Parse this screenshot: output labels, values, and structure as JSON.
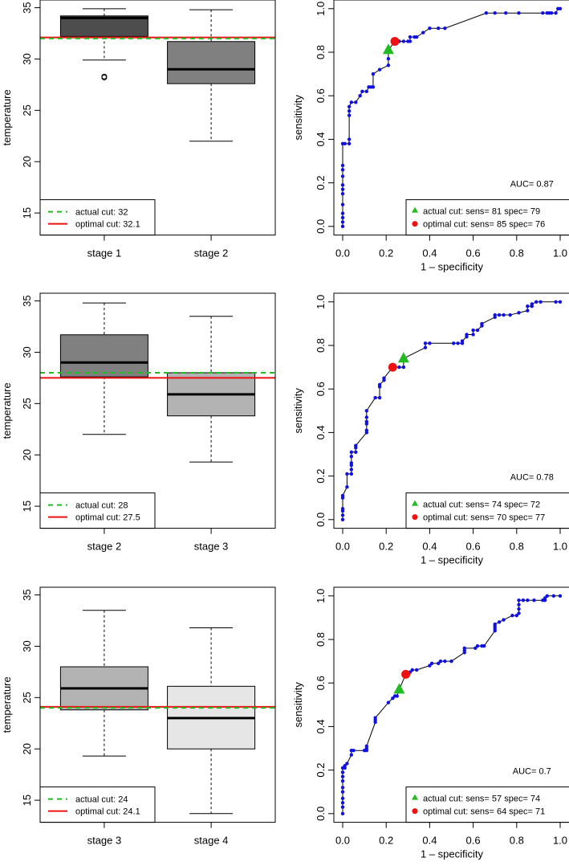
{
  "chart_data": [
    {
      "type": "box",
      "ylabel": "temperature",
      "ylim": [
        12.85,
        35.75
      ],
      "yticks": [
        "15",
        "20",
        "25",
        "30",
        "35"
      ],
      "categories": [
        "stage 1",
        "stage 2"
      ],
      "boxes": [
        {
          "name": "stage 1",
          "whisker_low": 29.9,
          "q1": 32.2,
          "median": 34.0,
          "q3": 34.2,
          "whisker_high": 34.9,
          "outliers": [
            28.3,
            28.2
          ],
          "color": "#4d4d4d"
        },
        {
          "name": "stage 2",
          "whisker_low": 22.0,
          "q1": 27.6,
          "median": 29.0,
          "q3": 31.7,
          "whisker_high": 34.8,
          "outliers": [],
          "color": "#808080"
        }
      ],
      "actual_cut": 32,
      "optimal_cut": 32.1,
      "legend": [
        "actual cut: 32",
        "optimal cut: 32.1"
      ],
      "legend_position": "bottom-left"
    },
    {
      "type": "line",
      "xlabel": "1 – specificity",
      "ylabel": "sensitivity",
      "xlim": [
        0,
        1
      ],
      "ylim": [
        0,
        1
      ],
      "xticks": [
        "0.0",
        "0.2",
        "0.4",
        "0.6",
        "0.8",
        "1.0"
      ],
      "yticks": [
        "0.0",
        "0.2",
        "0.4",
        "0.6",
        "0.8",
        "1.0"
      ],
      "auc_label": "AUC= 0.87",
      "actual": [
        0.21,
        0.81
      ],
      "optimal": [
        0.24,
        0.85
      ],
      "legend": [
        "actual cut: sens= 81 spec= 79",
        "optimal cut: sens= 85 spec= 76"
      ],
      "legend_position": "bottom-right",
      "points": [
        [
          0,
          0
        ],
        [
          0,
          0.02
        ],
        [
          0,
          0.04
        ],
        [
          0,
          0.06
        ],
        [
          0,
          0.1
        ],
        [
          0,
          0.15
        ],
        [
          0,
          0.17
        ],
        [
          0,
          0.19
        ],
        [
          0,
          0.23
        ],
        [
          0,
          0.26
        ],
        [
          0,
          0.28
        ],
        [
          0,
          0.38
        ],
        [
          0.01,
          0.38
        ],
        [
          0.03,
          0.38
        ],
        [
          0.03,
          0.4
        ],
        [
          0.03,
          0.51
        ],
        [
          0.03,
          0.53
        ],
        [
          0.03,
          0.55
        ],
        [
          0.04,
          0.57
        ],
        [
          0.06,
          0.57
        ],
        [
          0.08,
          0.6
        ],
        [
          0.09,
          0.62
        ],
        [
          0.11,
          0.62
        ],
        [
          0.12,
          0.64
        ],
        [
          0.13,
          0.64
        ],
        [
          0.14,
          0.64
        ],
        [
          0.14,
          0.7
        ],
        [
          0.17,
          0.72
        ],
        [
          0.21,
          0.74
        ],
        [
          0.21,
          0.77
        ],
        [
          0.21,
          0.81
        ],
        [
          0.24,
          0.85
        ],
        [
          0.26,
          0.85
        ],
        [
          0.28,
          0.85
        ],
        [
          0.3,
          0.85
        ],
        [
          0.31,
          0.85
        ],
        [
          0.31,
          0.87
        ],
        [
          0.33,
          0.87
        ],
        [
          0.34,
          0.87
        ],
        [
          0.37,
          0.89
        ],
        [
          0.4,
          0.91
        ],
        [
          0.44,
          0.91
        ],
        [
          0.47,
          0.91
        ],
        [
          0.66,
          0.98
        ],
        [
          0.7,
          0.98
        ],
        [
          0.75,
          0.98
        ],
        [
          0.81,
          0.98
        ],
        [
          0.92,
          0.98
        ],
        [
          0.94,
          0.98
        ],
        [
          0.95,
          0.98
        ],
        [
          0.96,
          0.98
        ],
        [
          0.98,
          0.98
        ],
        [
          0.99,
          1
        ],
        [
          1,
          1
        ]
      ]
    },
    {
      "type": "box",
      "ylabel": "temperature",
      "ylim": [
        12.85,
        35.75
      ],
      "yticks": [
        "15",
        "20",
        "25",
        "30",
        "35"
      ],
      "categories": [
        "stage 2",
        "stage 3"
      ],
      "boxes": [
        {
          "name": "stage 2",
          "whisker_low": 22.0,
          "q1": 27.6,
          "median": 29.0,
          "q3": 31.7,
          "whisker_high": 34.8,
          "outliers": [],
          "color": "#808080"
        },
        {
          "name": "stage 3",
          "whisker_low": 19.3,
          "q1": 23.8,
          "median": 25.9,
          "q3": 28.0,
          "whisker_high": 33.5,
          "outliers": [],
          "color": "#b3b3b3"
        }
      ],
      "actual_cut": 28,
      "optimal_cut": 27.5,
      "legend": [
        "actual cut: 28",
        "optimal cut: 27.5"
      ],
      "legend_position": "bottom-left"
    },
    {
      "type": "line",
      "xlabel": "1 – specificity",
      "ylabel": "sensitivity",
      "xlim": [
        0,
        1
      ],
      "ylim": [
        0,
        1
      ],
      "xticks": [
        "0.0",
        "0.2",
        "0.4",
        "0.6",
        "0.8",
        "1.0"
      ],
      "yticks": [
        "0.0",
        "0.2",
        "0.4",
        "0.6",
        "0.8",
        "1.0"
      ],
      "auc_label": "AUC= 0.78",
      "actual": [
        0.28,
        0.74
      ],
      "optimal": [
        0.23,
        0.7
      ],
      "legend": [
        "actual cut: sens= 74 spec= 72",
        "optimal cut: sens= 70 spec= 77"
      ],
      "legend_position": "bottom-right",
      "points": [
        [
          0,
          0
        ],
        [
          0,
          0.02
        ],
        [
          0,
          0.04
        ],
        [
          0,
          0.05
        ],
        [
          0,
          0.1
        ],
        [
          0,
          0.11
        ],
        [
          0.02,
          0.15
        ],
        [
          0.02,
          0.21
        ],
        [
          0.04,
          0.21
        ],
        [
          0.04,
          0.23
        ],
        [
          0.04,
          0.25
        ],
        [
          0.04,
          0.26
        ],
        [
          0.04,
          0.29
        ],
        [
          0.04,
          0.31
        ],
        [
          0.06,
          0.31
        ],
        [
          0.06,
          0.33
        ],
        [
          0.06,
          0.34
        ],
        [
          0.11,
          0.4
        ],
        [
          0.11,
          0.41
        ],
        [
          0.11,
          0.44
        ],
        [
          0.11,
          0.45
        ],
        [
          0.11,
          0.47
        ],
        [
          0.11,
          0.5
        ],
        [
          0.15,
          0.56
        ],
        [
          0.17,
          0.56
        ],
        [
          0.17,
          0.61
        ],
        [
          0.17,
          0.62
        ],
        [
          0.19,
          0.64
        ],
        [
          0.19,
          0.65
        ],
        [
          0.23,
          0.7
        ],
        [
          0.26,
          0.7
        ],
        [
          0.28,
          0.7
        ],
        [
          0.28,
          0.74
        ],
        [
          0.38,
          0.79
        ],
        [
          0.38,
          0.81
        ],
        [
          0.4,
          0.81
        ],
        [
          0.51,
          0.81
        ],
        [
          0.53,
          0.81
        ],
        [
          0.55,
          0.81
        ],
        [
          0.55,
          0.82
        ],
        [
          0.57,
          0.84
        ],
        [
          0.57,
          0.85
        ],
        [
          0.6,
          0.85
        ],
        [
          0.6,
          0.87
        ],
        [
          0.62,
          0.87
        ],
        [
          0.64,
          0.89
        ],
        [
          0.64,
          0.9
        ],
        [
          0.7,
          0.93
        ],
        [
          0.7,
          0.94
        ],
        [
          0.72,
          0.94
        ],
        [
          0.74,
          0.94
        ],
        [
          0.77,
          0.94
        ],
        [
          0.81,
          0.95
        ],
        [
          0.85,
          0.96
        ],
        [
          0.85,
          0.98
        ],
        [
          0.87,
          0.98
        ],
        [
          0.87,
          0.99
        ],
        [
          0.89,
          1
        ],
        [
          0.91,
          1
        ],
        [
          0.98,
          1
        ],
        [
          1,
          1
        ]
      ]
    },
    {
      "type": "box",
      "ylabel": "temperature",
      "ylim": [
        12.85,
        35.75
      ],
      "yticks": [
        "15",
        "20",
        "25",
        "30",
        "35"
      ],
      "categories": [
        "stage 3",
        "stage 4"
      ],
      "boxes": [
        {
          "name": "stage 3",
          "whisker_low": 19.3,
          "q1": 23.8,
          "median": 25.9,
          "q3": 28.0,
          "whisker_high": 33.5,
          "outliers": [],
          "color": "#b3b3b3"
        },
        {
          "name": "stage 4",
          "whisker_low": 13.7,
          "q1": 20.0,
          "median": 23.0,
          "q3": 26.1,
          "whisker_high": 31.8,
          "outliers": [],
          "color": "#e6e6e6"
        }
      ],
      "actual_cut": 24,
      "optimal_cut": 24.1,
      "legend": [
        "actual cut: 24",
        "optimal cut: 24.1"
      ],
      "legend_position": "bottom-left"
    },
    {
      "type": "line",
      "xlabel": "1 – specificity",
      "ylabel": "sensitivity",
      "xlim": [
        0,
        1
      ],
      "ylim": [
        0,
        1
      ],
      "xticks": [
        "0.0",
        "0.2",
        "0.4",
        "0.6",
        "0.8",
        "1.0"
      ],
      "yticks": [
        "0.0",
        "0.2",
        "0.4",
        "0.6",
        "0.8",
        "1.0"
      ],
      "auc_label": "AUC= 0.7",
      "actual": [
        0.26,
        0.57
      ],
      "optimal": [
        0.29,
        0.64
      ],
      "legend": [
        "actual cut: sens= 57 spec= 74",
        "optimal cut: sens= 64 spec= 71"
      ],
      "legend_position": "bottom-right",
      "points": [
        [
          0,
          0
        ],
        [
          0,
          0.03
        ],
        [
          0,
          0.05
        ],
        [
          0,
          0.07
        ],
        [
          0,
          0.1
        ],
        [
          0,
          0.12
        ],
        [
          0,
          0.15
        ],
        [
          0,
          0.17
        ],
        [
          0,
          0.19
        ],
        [
          0,
          0.21
        ],
        [
          0.01,
          0.21
        ],
        [
          0.01,
          0.22
        ],
        [
          0.02,
          0.23
        ],
        [
          0.04,
          0.27
        ],
        [
          0.04,
          0.29
        ],
        [
          0.05,
          0.29
        ],
        [
          0.1,
          0.29
        ],
        [
          0.11,
          0.29
        ],
        [
          0.11,
          0.3
        ],
        [
          0.11,
          0.31
        ],
        [
          0.15,
          0.42
        ],
        [
          0.15,
          0.43
        ],
        [
          0.15,
          0.44
        ],
        [
          0.21,
          0.51
        ],
        [
          0.23,
          0.53
        ],
        [
          0.24,
          0.54
        ],
        [
          0.25,
          0.54
        ],
        [
          0.26,
          0.57
        ],
        [
          0.29,
          0.64
        ],
        [
          0.31,
          0.65
        ],
        [
          0.32,
          0.66
        ],
        [
          0.34,
          0.66
        ],
        [
          0.4,
          0.68
        ],
        [
          0.41,
          0.69
        ],
        [
          0.44,
          0.69
        ],
        [
          0.45,
          0.7
        ],
        [
          0.47,
          0.7
        ],
        [
          0.5,
          0.7
        ],
        [
          0.56,
          0.74
        ],
        [
          0.56,
          0.75
        ],
        [
          0.56,
          0.76
        ],
        [
          0.61,
          0.76
        ],
        [
          0.62,
          0.77
        ],
        [
          0.64,
          0.77
        ],
        [
          0.65,
          0.77
        ],
        [
          0.7,
          0.84
        ],
        [
          0.7,
          0.85
        ],
        [
          0.7,
          0.86
        ],
        [
          0.7,
          0.87
        ],
        [
          0.72,
          0.88
        ],
        [
          0.74,
          0.89
        ],
        [
          0.78,
          0.91
        ],
        [
          0.8,
          0.91
        ],
        [
          0.81,
          0.92
        ],
        [
          0.81,
          0.94
        ],
        [
          0.81,
          0.96
        ],
        [
          0.81,
          0.98
        ],
        [
          0.83,
          0.98
        ],
        [
          0.85,
          0.98
        ],
        [
          0.88,
          0.98
        ],
        [
          0.92,
          0.98
        ],
        [
          0.93,
          0.98
        ],
        [
          0.93,
          0.99
        ],
        [
          0.94,
          1
        ],
        [
          0.97,
          1
        ],
        [
          1,
          1
        ]
      ]
    }
  ],
  "colors": {
    "actual": "#22bb22",
    "optimal": "#ee1111",
    "roc_points": "#1010e0",
    "axis": "#000000"
  }
}
